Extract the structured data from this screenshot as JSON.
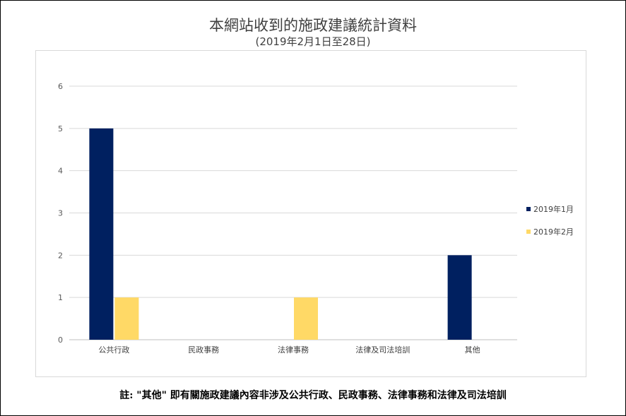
{
  "chart_data": {
    "type": "bar",
    "title": "本網站收到的施政建議統計資料",
    "subtitle": "(2019年2月1日至28日)",
    "categories": [
      "公共行政",
      "民政事務",
      "法律事務",
      "法律及司法培訓",
      "其他"
    ],
    "series": [
      {
        "name": "2019年1月",
        "values": [
          5,
          0,
          0,
          0,
          2
        ],
        "color": "#002060"
      },
      {
        "name": "2019年2月",
        "values": [
          1,
          0,
          1,
          0,
          0
        ],
        "color": "#ffd966"
      }
    ],
    "ylim": [
      0,
      6
    ],
    "yticks": [
      0,
      1,
      2,
      3,
      4,
      5,
      6
    ],
    "grid": true,
    "legend": "right"
  },
  "footnote": "註: \"其他\" 即有關施政建議內容非涉及公共行政、民政事務、法律事務和法律及司法培訓"
}
